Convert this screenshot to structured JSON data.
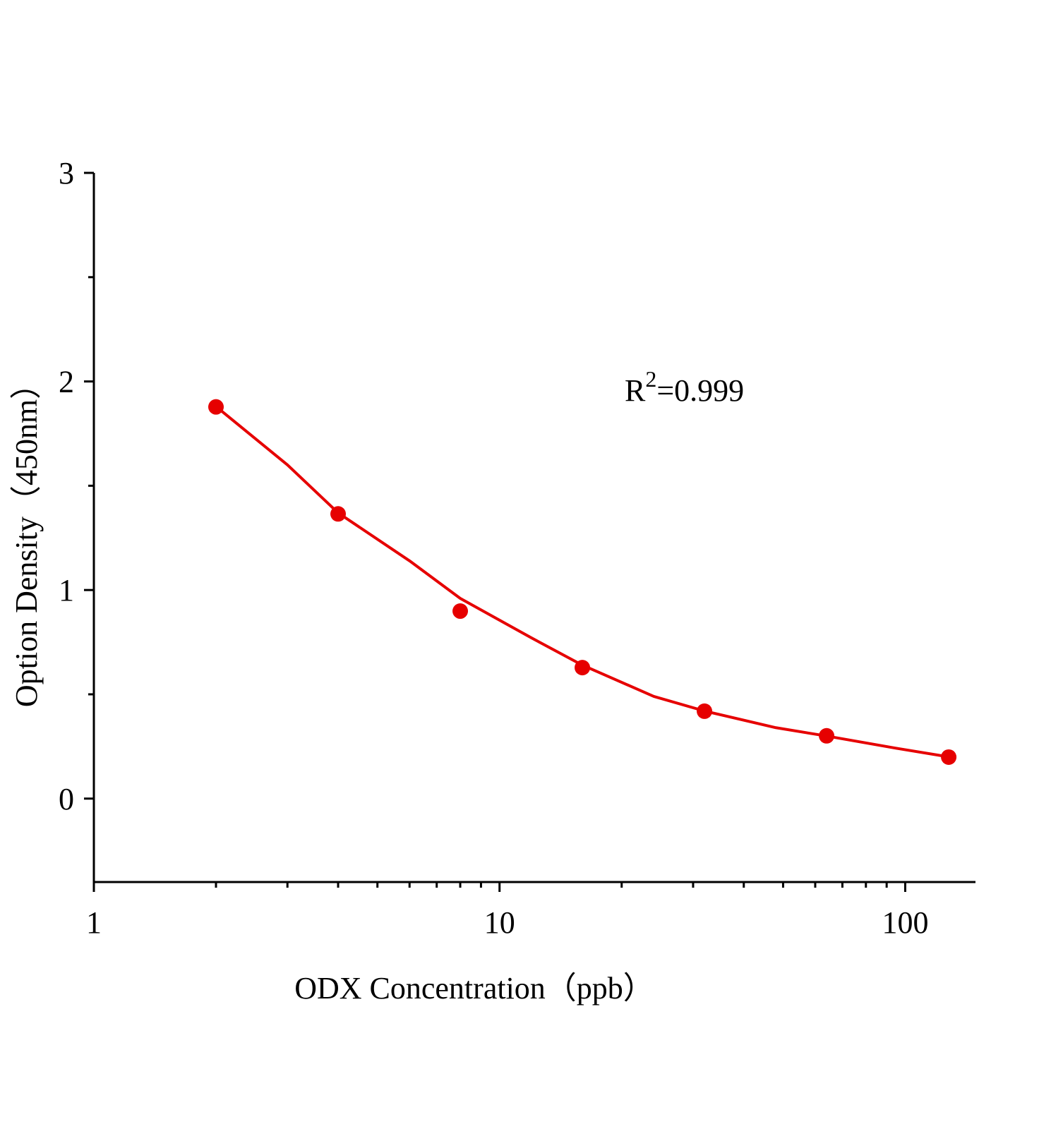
{
  "chart_data": {
    "type": "scatter",
    "x_label": "ODX  Concentration（ppb）",
    "y_label": "Option Density（450nm）",
    "annotation": {
      "base": "R",
      "sup": "2",
      "text": "=0.999"
    },
    "xscale": "log",
    "xlim": [
      1,
      149
    ],
    "ylim": [
      -0.4,
      3
    ],
    "xticks": [
      1,
      10,
      100
    ],
    "yticks": [
      0,
      1,
      2,
      3
    ],
    "xminorticks": [
      2,
      3,
      4,
      5,
      6,
      7,
      8,
      9,
      20,
      30,
      40,
      50,
      60,
      70,
      80,
      90
    ],
    "yminorticks": [
      0.5,
      1.5,
      2.5
    ],
    "series": [
      {
        "color": "#e60000",
        "marker": "circle",
        "x": [
          2,
          4,
          8,
          16,
          32,
          64,
          128
        ],
        "values": [
          1.878,
          1.365,
          0.899,
          0.628,
          0.419,
          0.301,
          0.199
        ]
      },
      {
        "color": "#e60000",
        "marker": "line",
        "x": [
          2,
          3,
          4,
          6,
          8,
          12,
          16,
          24,
          32,
          48,
          64,
          96,
          128
        ],
        "values": [
          1.88,
          1.6,
          1.37,
          1.14,
          0.96,
          0.77,
          0.64,
          0.49,
          0.42,
          0.34,
          0.3,
          0.24,
          0.2
        ]
      }
    ]
  }
}
